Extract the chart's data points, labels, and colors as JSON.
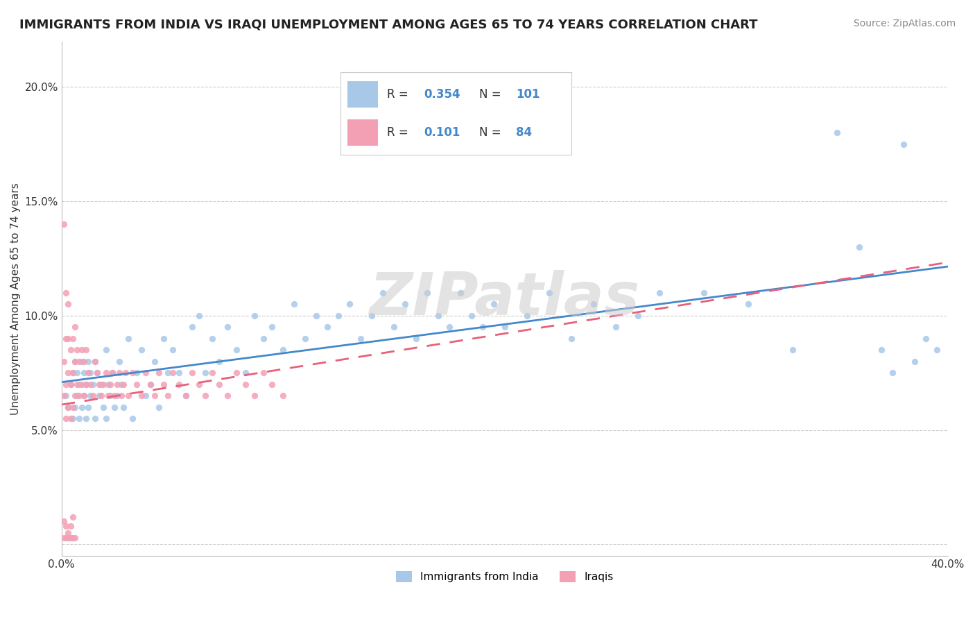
{
  "title": "IMMIGRANTS FROM INDIA VS IRAQI UNEMPLOYMENT AMONG AGES 65 TO 74 YEARS CORRELATION CHART",
  "source": "Source: ZipAtlas.com",
  "ylabel": "Unemployment Among Ages 65 to 74 years",
  "xlim": [
    0.0,
    0.4
  ],
  "ylim": [
    -0.005,
    0.22
  ],
  "xticks": [
    0.0,
    0.05,
    0.1,
    0.15,
    0.2,
    0.25,
    0.3,
    0.35,
    0.4
  ],
  "xticklabels": [
    "0.0%",
    "",
    "",
    "",
    "",
    "",
    "",
    "",
    "40.0%"
  ],
  "yticks": [
    0.0,
    0.05,
    0.1,
    0.15,
    0.2
  ],
  "yticklabels": [
    "",
    "5.0%",
    "10.0%",
    "15.0%",
    "20.0%"
  ],
  "india_color": "#a8c8e8",
  "iraq_color": "#f4a0b4",
  "india_line_color": "#4488cc",
  "iraq_line_color": "#e8607a",
  "grid_color": "#cccccc",
  "watermark": "ZIPatlas",
  "india_label": "Immigrants from India",
  "iraq_label": "Iraqis",
  "india_R": "0.354",
  "india_N": "101",
  "iraq_R": "0.101",
  "iraq_N": "84",
  "india_x": [
    0.002,
    0.003,
    0.004,
    0.005,
    0.005,
    0.006,
    0.006,
    0.007,
    0.007,
    0.008,
    0.008,
    0.009,
    0.009,
    0.01,
    0.01,
    0.011,
    0.011,
    0.012,
    0.012,
    0.013,
    0.013,
    0.014,
    0.015,
    0.015,
    0.016,
    0.017,
    0.018,
    0.019,
    0.02,
    0.02,
    0.021,
    0.022,
    0.023,
    0.024,
    0.025,
    0.026,
    0.027,
    0.028,
    0.03,
    0.032,
    0.034,
    0.036,
    0.038,
    0.04,
    0.042,
    0.044,
    0.046,
    0.048,
    0.05,
    0.053,
    0.056,
    0.059,
    0.062,
    0.065,
    0.068,
    0.071,
    0.075,
    0.079,
    0.083,
    0.087,
    0.091,
    0.095,
    0.1,
    0.105,
    0.11,
    0.115,
    0.12,
    0.125,
    0.13,
    0.135,
    0.14,
    0.145,
    0.15,
    0.155,
    0.16,
    0.165,
    0.17,
    0.175,
    0.18,
    0.185,
    0.19,
    0.195,
    0.2,
    0.21,
    0.22,
    0.23,
    0.24,
    0.25,
    0.26,
    0.27,
    0.29,
    0.31,
    0.33,
    0.35,
    0.36,
    0.37,
    0.375,
    0.38,
    0.385,
    0.39,
    0.395
  ],
  "india_y": [
    0.065,
    0.06,
    0.07,
    0.055,
    0.075,
    0.06,
    0.08,
    0.065,
    0.075,
    0.055,
    0.07,
    0.06,
    0.08,
    0.065,
    0.075,
    0.055,
    0.07,
    0.06,
    0.08,
    0.065,
    0.075,
    0.07,
    0.055,
    0.08,
    0.075,
    0.065,
    0.07,
    0.06,
    0.055,
    0.085,
    0.07,
    0.065,
    0.075,
    0.06,
    0.065,
    0.08,
    0.07,
    0.06,
    0.09,
    0.055,
    0.075,
    0.085,
    0.065,
    0.07,
    0.08,
    0.06,
    0.09,
    0.075,
    0.085,
    0.075,
    0.065,
    0.095,
    0.1,
    0.075,
    0.09,
    0.08,
    0.095,
    0.085,
    0.075,
    0.1,
    0.09,
    0.095,
    0.085,
    0.105,
    0.09,
    0.1,
    0.095,
    0.1,
    0.105,
    0.09,
    0.1,
    0.11,
    0.095,
    0.105,
    0.09,
    0.11,
    0.1,
    0.095,
    0.11,
    0.1,
    0.095,
    0.105,
    0.095,
    0.1,
    0.11,
    0.09,
    0.105,
    0.095,
    0.1,
    0.11,
    0.11,
    0.105,
    0.085,
    0.18,
    0.13,
    0.085,
    0.075,
    0.175,
    0.08,
    0.09,
    0.085
  ],
  "iraq_x": [
    0.001,
    0.001,
    0.001,
    0.002,
    0.002,
    0.002,
    0.002,
    0.003,
    0.003,
    0.003,
    0.003,
    0.004,
    0.004,
    0.004,
    0.005,
    0.005,
    0.005,
    0.006,
    0.006,
    0.006,
    0.007,
    0.007,
    0.008,
    0.008,
    0.009,
    0.009,
    0.01,
    0.01,
    0.011,
    0.011,
    0.012,
    0.013,
    0.014,
    0.015,
    0.016,
    0.017,
    0.018,
    0.019,
    0.02,
    0.021,
    0.022,
    0.023,
    0.024,
    0.025,
    0.026,
    0.027,
    0.028,
    0.029,
    0.03,
    0.032,
    0.034,
    0.036,
    0.038,
    0.04,
    0.042,
    0.044,
    0.046,
    0.048,
    0.05,
    0.053,
    0.056,
    0.059,
    0.062,
    0.065,
    0.068,
    0.071,
    0.075,
    0.079,
    0.083,
    0.087,
    0.091,
    0.095,
    0.1,
    0.001,
    0.001,
    0.002,
    0.002,
    0.003,
    0.003,
    0.004,
    0.004,
    0.005,
    0.005,
    0.006
  ],
  "iraq_y": [
    0.065,
    0.08,
    0.14,
    0.055,
    0.07,
    0.09,
    0.11,
    0.06,
    0.075,
    0.09,
    0.105,
    0.055,
    0.07,
    0.085,
    0.06,
    0.075,
    0.09,
    0.065,
    0.08,
    0.095,
    0.07,
    0.085,
    0.065,
    0.08,
    0.07,
    0.085,
    0.065,
    0.08,
    0.07,
    0.085,
    0.075,
    0.07,
    0.065,
    0.08,
    0.075,
    0.07,
    0.065,
    0.07,
    0.075,
    0.065,
    0.07,
    0.075,
    0.065,
    0.07,
    0.075,
    0.065,
    0.07,
    0.075,
    0.065,
    0.075,
    0.07,
    0.065,
    0.075,
    0.07,
    0.065,
    0.075,
    0.07,
    0.065,
    0.075,
    0.07,
    0.065,
    0.075,
    0.07,
    0.065,
    0.075,
    0.07,
    0.065,
    0.075,
    0.07,
    0.065,
    0.075,
    0.07,
    0.065,
    0.01,
    0.003,
    0.008,
    0.003,
    0.005,
    0.003,
    0.008,
    0.003,
    0.012,
    0.003,
    0.003
  ]
}
